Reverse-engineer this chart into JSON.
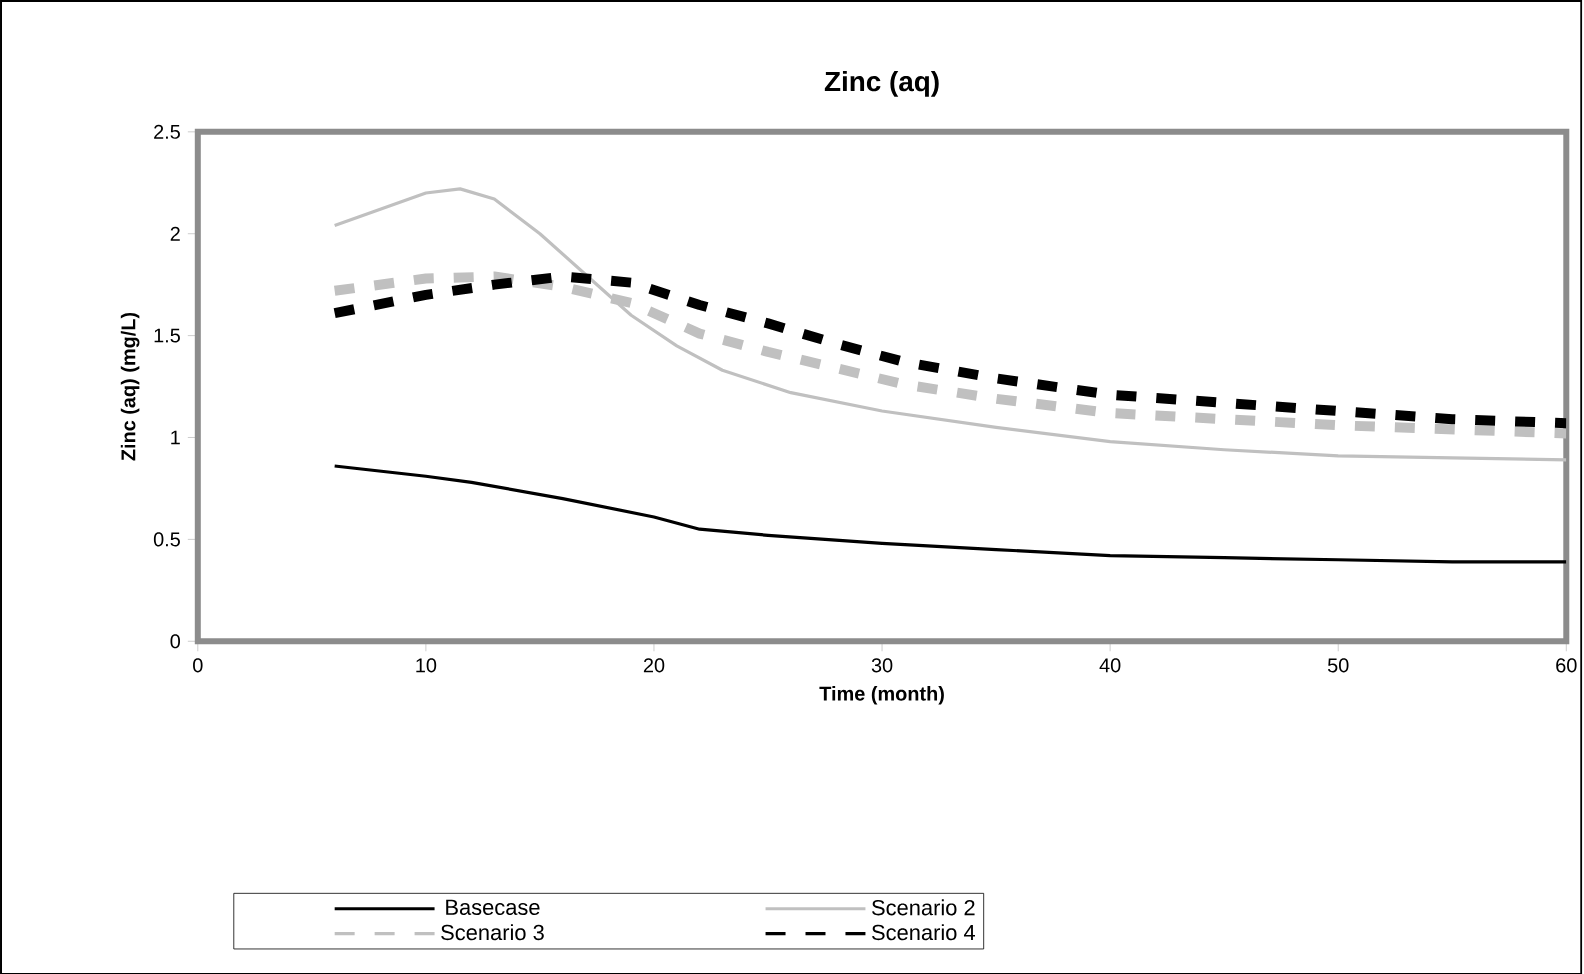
{
  "chart_data": {
    "type": "line",
    "title": "Zinc (aq)",
    "xlabel": "Time (month)",
    "ylabel": "Zinc (aq) (mg/L)",
    "xlim": [
      0,
      60
    ],
    "xticks": [
      0,
      10,
      20,
      30,
      40,
      50,
      60
    ],
    "ylim": [
      0,
      2.5
    ],
    "yticks": [
      0,
      0.5,
      1,
      1.5,
      2,
      2.5
    ],
    "legend": "bottom",
    "series": [
      {
        "name": "Basecase",
        "color": "#000000",
        "line_style": "solid",
        "x": [
          6,
          10,
          12,
          16,
          20,
          22,
          25,
          30,
          35,
          40,
          45,
          50,
          55,
          60
        ],
        "values": [
          0.86,
          0.81,
          0.78,
          0.7,
          0.61,
          0.55,
          0.52,
          0.48,
          0.45,
          0.42,
          0.41,
          0.4,
          0.39,
          0.39
        ]
      },
      {
        "name": "Scenario 2",
        "color": "#c0c0c0",
        "line_style": "solid",
        "x": [
          6,
          8,
          10,
          11.5,
          13,
          15,
          17,
          19,
          21,
          23,
          26,
          30,
          35,
          40,
          45,
          50,
          55,
          60
        ],
        "values": [
          2.04,
          2.12,
          2.2,
          2.22,
          2.17,
          2.0,
          1.8,
          1.6,
          1.45,
          1.33,
          1.22,
          1.13,
          1.05,
          0.98,
          0.94,
          0.91,
          0.9,
          0.89
        ]
      },
      {
        "name": "Scenario 3",
        "color": "#c0c0c0",
        "line_style": "dashed",
        "x": [
          6,
          10,
          13,
          16,
          19,
          22,
          25,
          28,
          31,
          35,
          40,
          45,
          50,
          55,
          60
        ],
        "values": [
          1.72,
          1.78,
          1.79,
          1.74,
          1.66,
          1.51,
          1.42,
          1.34,
          1.26,
          1.19,
          1.12,
          1.09,
          1.06,
          1.04,
          1.02
        ]
      },
      {
        "name": "Scenario 4",
        "color": "#000000",
        "line_style": "dashed",
        "x": [
          6,
          10,
          13,
          16,
          19,
          22,
          25,
          28,
          31,
          35,
          40,
          45,
          50,
          55,
          60
        ],
        "values": [
          1.61,
          1.7,
          1.75,
          1.79,
          1.76,
          1.65,
          1.56,
          1.46,
          1.37,
          1.29,
          1.21,
          1.17,
          1.13,
          1.09,
          1.07
        ]
      }
    ]
  }
}
